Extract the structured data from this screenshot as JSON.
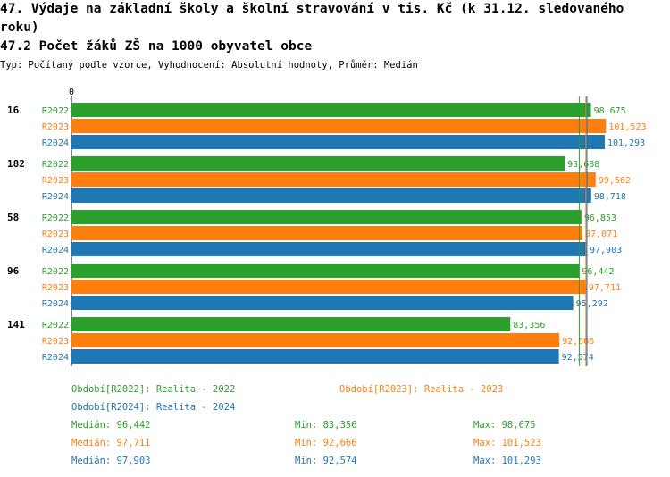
{
  "header": {
    "title_line1": "47. Výdaje na základní školy a školní stravování v tis. Kč (k 31.12. sledovaného",
    "title_line2": "roku)",
    "subtitle": "47.2 Počet žáků ZŠ na 1000 obyvatel obce",
    "type_line": "Typ: Počítaný podle vzorce, Vyhodnocení: Absolutní hodnoty, Průměr: Medián"
  },
  "colors": {
    "R2022": "#2ca02c",
    "R2023": "#ff7f0e",
    "R2024": "#1f77b4"
  },
  "chart_data": {
    "type": "bar",
    "orientation": "horizontal",
    "x_axis_zero_label": "0",
    "xlim": [
      0,
      103500
    ],
    "categories": [
      "16",
      "182",
      "58",
      "96",
      "141"
    ],
    "series": [
      {
        "name": "R2022",
        "values": [
          98675,
          93688,
          96853,
          96442,
          83356
        ],
        "labels": [
          "98,675",
          "93,688",
          "96,853",
          "96,442",
          "83,356"
        ]
      },
      {
        "name": "R2023",
        "values": [
          101523,
          99562,
          97071,
          97711,
          92666
        ],
        "labels": [
          "101,523",
          "99,562",
          "97,071",
          "97,711",
          "92,666"
        ]
      },
      {
        "name": "R2024",
        "values": [
          101293,
          98718,
          97903,
          95292,
          92574
        ],
        "labels": [
          "101,293",
          "98,718",
          "97,903",
          "95,292",
          "92,574"
        ]
      }
    ],
    "reference_lines": {
      "R2022": 96442,
      "R2023": 97711,
      "R2024": 97903
    }
  },
  "legend": {
    "r2022": "Období[R2022]: Realita - 2022",
    "r2023": "Období[R2023]: Realita - 2023",
    "r2024": "Období[R2024]: Realita - 2024"
  },
  "stats": [
    {
      "series": "R2022",
      "median": "Medián: 96,442",
      "min": "Min: 83,356",
      "max": "Max: 98,675"
    },
    {
      "series": "R2023",
      "median": "Medián: 97,711",
      "min": "Min: 92,666",
      "max": "Max: 101,523"
    },
    {
      "series": "R2024",
      "median": "Medián: 97,903",
      "min": "Min: 92,574",
      "max": "Max: 101,293"
    }
  ]
}
